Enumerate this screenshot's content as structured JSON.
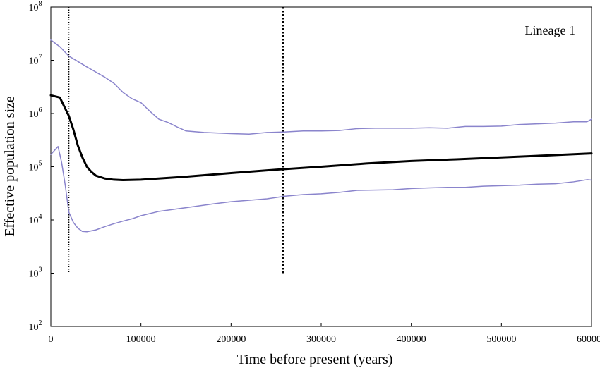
{
  "chart_data": {
    "type": "line",
    "title": "",
    "annotation": "Lineage 1",
    "xlabel": "Time before present (years)",
    "ylabel": "Effective population size",
    "xlim": [
      0,
      600000
    ],
    "ylim": [
      100,
      100000000
    ],
    "yscale": "log",
    "grid": false,
    "legend": "none",
    "x_ticks": [
      {
        "value": 0,
        "label": "0"
      },
      {
        "value": 100000,
        "label": "100000"
      },
      {
        "value": 200000,
        "label": "200000"
      },
      {
        "value": 300000,
        "label": "300000"
      },
      {
        "value": 400000,
        "label": "400000"
      },
      {
        "value": 500000,
        "label": "500000"
      },
      {
        "value": 600000,
        "label": "600000"
      }
    ],
    "y_ticks": [
      {
        "value": 100,
        "base": "10",
        "exp": "2"
      },
      {
        "value": 1000,
        "base": "10",
        "exp": "3"
      },
      {
        "value": 10000,
        "base": "10",
        "exp": "4"
      },
      {
        "value": 100000,
        "base": "10",
        "exp": "5"
      },
      {
        "value": 1000000,
        "base": "10",
        "exp": "6"
      },
      {
        "value": 10000000,
        "base": "10",
        "exp": "7"
      },
      {
        "value": 100000000,
        "base": "10",
        "exp": "8"
      }
    ],
    "vlines": [
      {
        "x": 20000,
        "y_from": 1000,
        "y_to": 100000000,
        "style": "dotted-thin"
      },
      {
        "x": 258000,
        "y_from": 1000,
        "y_to": 100000000,
        "style": "dotted-thick"
      }
    ],
    "series": [
      {
        "role": "upper",
        "color": "#8a84cc",
        "width": 1.5,
        "points": [
          [
            0,
            24000000
          ],
          [
            10000,
            18000000
          ],
          [
            20000,
            12000000
          ],
          [
            30000,
            9500000
          ],
          [
            40000,
            7500000
          ],
          [
            50000,
            6000000
          ],
          [
            60000,
            4800000
          ],
          [
            70000,
            3700000
          ],
          [
            80000,
            2500000
          ],
          [
            90000,
            1900000
          ],
          [
            100000,
            1600000
          ],
          [
            110000,
            1100000
          ],
          [
            120000,
            780000
          ],
          [
            130000,
            680000
          ],
          [
            140000,
            560000
          ],
          [
            150000,
            470000
          ],
          [
            170000,
            440000
          ],
          [
            200000,
            420000
          ],
          [
            220000,
            410000
          ],
          [
            240000,
            440000
          ],
          [
            260000,
            450000
          ],
          [
            280000,
            470000
          ],
          [
            300000,
            470000
          ],
          [
            320000,
            480000
          ],
          [
            340000,
            520000
          ],
          [
            360000,
            530000
          ],
          [
            400000,
            530000
          ],
          [
            420000,
            540000
          ],
          [
            440000,
            530000
          ],
          [
            460000,
            570000
          ],
          [
            480000,
            570000
          ],
          [
            500000,
            580000
          ],
          [
            520000,
            620000
          ],
          [
            540000,
            640000
          ],
          [
            560000,
            660000
          ],
          [
            580000,
            700000
          ],
          [
            595000,
            700000
          ],
          [
            600000,
            780000
          ]
        ]
      },
      {
        "role": "median",
        "color": "#000000",
        "width": 3,
        "points": [
          [
            0,
            2200000
          ],
          [
            10000,
            2000000
          ],
          [
            20000,
            900000
          ],
          [
            25000,
            500000
          ],
          [
            30000,
            250000
          ],
          [
            35000,
            150000
          ],
          [
            40000,
            100000
          ],
          [
            45000,
            80000
          ],
          [
            50000,
            68000
          ],
          [
            60000,
            60000
          ],
          [
            70000,
            57000
          ],
          [
            80000,
            56000
          ],
          [
            100000,
            57000
          ],
          [
            150000,
            65000
          ],
          [
            200000,
            76000
          ],
          [
            250000,
            88000
          ],
          [
            300000,
            100000
          ],
          [
            350000,
            115000
          ],
          [
            400000,
            128000
          ],
          [
            450000,
            138000
          ],
          [
            500000,
            150000
          ],
          [
            550000,
            163000
          ],
          [
            600000,
            178000
          ]
        ]
      },
      {
        "role": "lower",
        "color": "#8a84cc",
        "width": 1.5,
        "points": [
          [
            0,
            170000
          ],
          [
            8000,
            240000
          ],
          [
            12000,
            120000
          ],
          [
            16000,
            45000
          ],
          [
            20000,
            14000
          ],
          [
            25000,
            9000
          ],
          [
            30000,
            7000
          ],
          [
            35000,
            6100
          ],
          [
            40000,
            6000
          ],
          [
            50000,
            6500
          ],
          [
            60000,
            7500
          ],
          [
            70000,
            8500
          ],
          [
            80000,
            9500
          ],
          [
            90000,
            10500
          ],
          [
            100000,
            12000
          ],
          [
            120000,
            14500
          ],
          [
            150000,
            17000
          ],
          [
            180000,
            20000
          ],
          [
            200000,
            22000
          ],
          [
            240000,
            25000
          ],
          [
            260000,
            28000
          ],
          [
            280000,
            30000
          ],
          [
            300000,
            31000
          ],
          [
            320000,
            33000
          ],
          [
            340000,
            36000
          ],
          [
            380000,
            37000
          ],
          [
            400000,
            39000
          ],
          [
            420000,
            40000
          ],
          [
            440000,
            41000
          ],
          [
            460000,
            41000
          ],
          [
            480000,
            43000
          ],
          [
            500000,
            44000
          ],
          [
            520000,
            45000
          ],
          [
            540000,
            47000
          ],
          [
            560000,
            48000
          ],
          [
            580000,
            52000
          ],
          [
            595000,
            57000
          ],
          [
            600000,
            56000
          ]
        ]
      }
    ]
  }
}
